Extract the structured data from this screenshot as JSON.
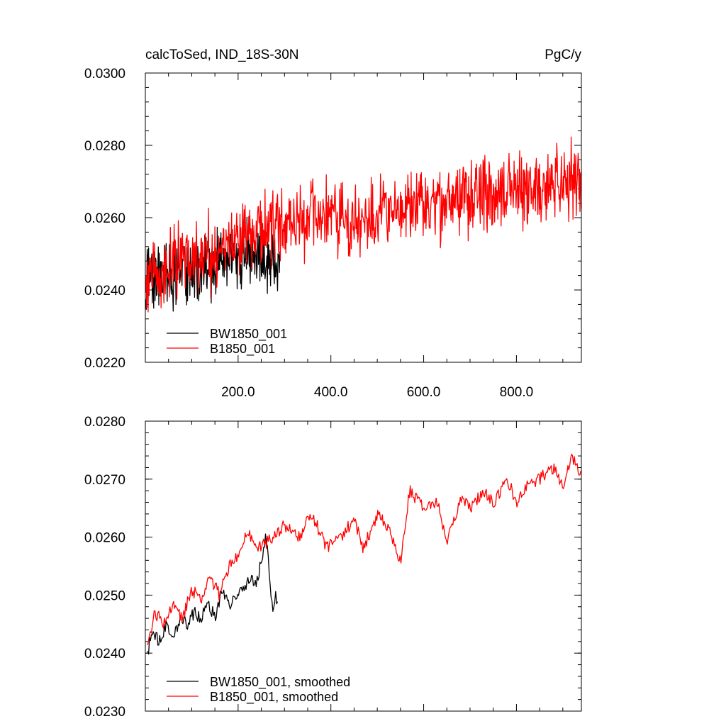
{
  "chart_data": [
    {
      "type": "line",
      "title_left": "calcToSed, IND_18S-30N",
      "title_right": "PgC/y",
      "xlabel": "",
      "ylabel": "",
      "xlim": [
        0,
        940
      ],
      "ylim": [
        0.022,
        0.03
      ],
      "x_major_ticks": [
        200,
        400,
        600,
        800
      ],
      "x_tick_labels": [
        "200.0",
        "400.0",
        "600.0",
        "800.0"
      ],
      "y_major_ticks": [
        0.022,
        0.024,
        0.026,
        0.028,
        0.03
      ],
      "y_tick_labels": [
        "0.0220",
        "0.0240",
        "0.0260",
        "0.0280",
        "0.0300"
      ],
      "legend_position": "bottom-left",
      "series": [
        {
          "name": "BW1850_001",
          "color": "#000000",
          "x_range": [
            1,
            290
          ],
          "keypoints_x": [
            1,
            20,
            50,
            80,
            110,
            140,
            170,
            200,
            230,
            260,
            290
          ],
          "keypoints_y": [
            0.0243,
            0.0244,
            0.0243,
            0.0245,
            0.0245,
            0.0246,
            0.0248,
            0.0249,
            0.025,
            0.0249,
            0.0246
          ],
          "noise_amplitude": 0.0009
        },
        {
          "name": "B1850_001",
          "color": "#ff0000",
          "x_range": [
            1,
            940
          ],
          "keypoints_x": [
            1,
            50,
            100,
            150,
            200,
            250,
            300,
            350,
            400,
            450,
            500,
            550,
            600,
            650,
            700,
            750,
            800,
            850,
            900,
            940
          ],
          "keypoints_y": [
            0.0244,
            0.0246,
            0.0249,
            0.0251,
            0.0254,
            0.0257,
            0.0258,
            0.0259,
            0.026,
            0.0259,
            0.026,
            0.0262,
            0.0263,
            0.0264,
            0.0266,
            0.0267,
            0.0268,
            0.0268,
            0.027,
            0.027
          ],
          "noise_amplitude": 0.0009
        }
      ]
    },
    {
      "type": "line",
      "xlabel": "",
      "ylabel": "",
      "xlim": [
        0,
        940
      ],
      "ylim": [
        0.023,
        0.028
      ],
      "x_major_ticks": [
        200,
        400,
        600,
        800
      ],
      "y_major_ticks": [
        0.023,
        0.024,
        0.025,
        0.026,
        0.027,
        0.028
      ],
      "y_tick_labels": [
        "0.0230",
        "0.0240",
        "0.0250",
        "0.0260",
        "0.0270",
        "0.0280"
      ],
      "legend_position": "bottom-left",
      "series": [
        {
          "name": "BW1850_001, smoothed",
          "color": "#000000",
          "x_range": [
            5,
            285
          ],
          "x": [
            5,
            15,
            30,
            45,
            60,
            75,
            90,
            105,
            120,
            135,
            150,
            165,
            180,
            195,
            210,
            225,
            240,
            255,
            260,
            265,
            270,
            275,
            280,
            285
          ],
          "y": [
            0.024,
            0.0244,
            0.0242,
            0.0245,
            0.0243,
            0.0246,
            0.0245,
            0.0247,
            0.0246,
            0.0249,
            0.0246,
            0.0251,
            0.0248,
            0.025,
            0.0251,
            0.0253,
            0.0252,
            0.0258,
            0.026,
            0.0256,
            0.0251,
            0.0247,
            0.025,
            0.0249
          ]
        },
        {
          "name": "B1850_001, smoothed",
          "color": "#ff0000",
          "x_range": [
            5,
            940
          ],
          "x": [
            5,
            20,
            40,
            60,
            80,
            100,
            120,
            140,
            160,
            180,
            200,
            220,
            240,
            260,
            280,
            300,
            330,
            360,
            390,
            420,
            450,
            470,
            500,
            520,
            550,
            570,
            600,
            630,
            650,
            680,
            700,
            730,
            750,
            780,
            800,
            820,
            850,
            880,
            900,
            920,
            940
          ],
          "y": [
            0.0241,
            0.0247,
            0.0245,
            0.0248,
            0.0246,
            0.0251,
            0.0249,
            0.0253,
            0.025,
            0.0255,
            0.0257,
            0.0261,
            0.0258,
            0.0259,
            0.026,
            0.0262,
            0.026,
            0.0264,
            0.0258,
            0.026,
            0.0263,
            0.0258,
            0.0264,
            0.0262,
            0.0256,
            0.0268,
            0.0265,
            0.0266,
            0.0259,
            0.0267,
            0.0265,
            0.0268,
            0.0266,
            0.027,
            0.0266,
            0.0269,
            0.027,
            0.0272,
            0.0269,
            0.0274,
            0.0271
          ]
        }
      ]
    }
  ]
}
